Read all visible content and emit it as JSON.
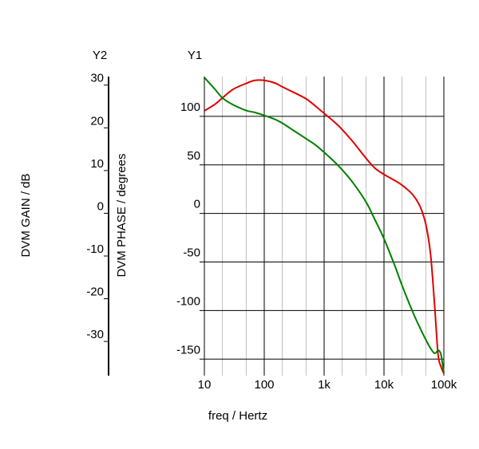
{
  "chart_data": {
    "type": "line",
    "xlabel": "freq / Hertz",
    "x_scale": "log",
    "xlim": [
      10,
      100000
    ],
    "x_ticks": [
      10,
      100,
      1000,
      10000,
      100000
    ],
    "x_tick_labels": [
      "10",
      "100",
      "1k",
      "10k",
      "100k"
    ],
    "y1": {
      "label": "Y1",
      "axis_title": "DVM PHASE / degrees",
      "lim": [
        -167,
        141
      ],
      "ticks": [
        100,
        50,
        0,
        -50,
        -100,
        -150
      ],
      "tick_labels": [
        "100",
        "50",
        "0",
        "-50",
        "-100",
        "-150"
      ]
    },
    "y2": {
      "label": "Y2",
      "axis_title": "DVM GAIN / dB",
      "lim": [
        -38,
        32
      ],
      "ticks": [
        30,
        20,
        10,
        0,
        -10,
        -20,
        -30
      ],
      "tick_labels": [
        "30",
        "20",
        "10",
        "0",
        "-10",
        "-20",
        "-30"
      ]
    },
    "grid": true,
    "series": [
      {
        "color": "#e00000",
        "axis": "y2",
        "x": [
          10,
          15,
          20,
          30,
          50,
          70,
          100,
          150,
          200,
          300,
          500,
          700,
          1000,
          1500,
          2000,
          3000,
          5000,
          7000,
          10000,
          15000,
          20000,
          30000,
          40000,
          50000,
          60000,
          70000,
          80000,
          90000,
          100000
        ],
        "y": [
          24,
          25.5,
          27,
          29,
          30.4,
          31.1,
          31.1,
          30.5,
          29.6,
          28.4,
          26.8,
          25.2,
          23.4,
          21.3,
          19.6,
          16.8,
          12.9,
          10.6,
          9.1,
          7.7,
          6.6,
          4.4,
          1.6,
          -2.6,
          -9.7,
          -21.5,
          -33,
          -36,
          -37.5
        ]
      },
      {
        "color": "#008000",
        "axis": "y1",
        "x": [
          10,
          15,
          20,
          30,
          50,
          70,
          100,
          150,
          200,
          300,
          500,
          700,
          1000,
          1500,
          2000,
          3000,
          5000,
          7000,
          10000,
          15000,
          20000,
          30000,
          40000,
          50000,
          60000,
          70000,
          80000,
          85000,
          90000,
          100000
        ],
        "y": [
          140,
          128,
          119,
          112,
          106,
          104,
          101,
          97,
          93,
          86,
          77,
          71,
          63,
          53,
          45,
          32,
          12,
          -6,
          -26,
          -53,
          -74,
          -101,
          -118,
          -130,
          -139,
          -144,
          -141,
          -142,
          -146,
          -164
        ]
      }
    ]
  }
}
